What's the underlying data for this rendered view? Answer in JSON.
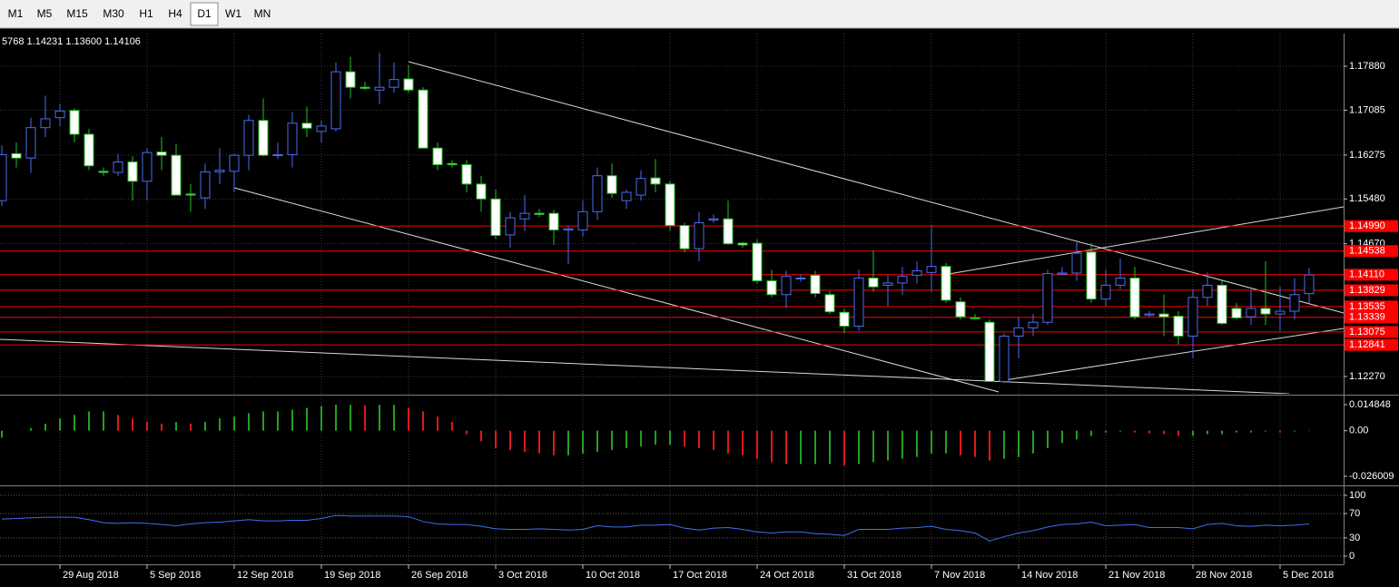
{
  "toolbar": {
    "buttons": [
      "M1",
      "M5",
      "M15",
      "M30",
      "H1",
      "H4",
      "D1",
      "W1",
      "MN"
    ],
    "active": 6
  },
  "chart_data": [
    {
      "type": "candlestick",
      "ohlc_label": "5768 1.14231 1.13600 1.14106",
      "categories": [
        null,
        null,
        null,
        null,
        "29 Aug 2018",
        null,
        null,
        null,
        null,
        null,
        "5 Sep 2018",
        null,
        null,
        null,
        null,
        null,
        "12 Sep 2018",
        null,
        null,
        null,
        null,
        null,
        "19 Sep 2018",
        null,
        null,
        null,
        null,
        null,
        "26 Sep 2018",
        null,
        null,
        null,
        null,
        null,
        "3 Oct 2018",
        null,
        null,
        null,
        null,
        null,
        "10 Oct 2018",
        null,
        null,
        null,
        null,
        null,
        "17 Oct 2018",
        null,
        null,
        null,
        null,
        null,
        "24 Oct 2018",
        null,
        null,
        null,
        null,
        null,
        "31 Oct 2018",
        null,
        null,
        null,
        null,
        null,
        "7 Nov 2018",
        null,
        null,
        null,
        null,
        null,
        "14 Nov 2018",
        null,
        null,
        null,
        null,
        null,
        "21 Nov 2018",
        null,
        null,
        null,
        null,
        null,
        "28 Nov 2018",
        null,
        null,
        null,
        null,
        null,
        "5 Dec 2018",
        null,
        null
      ],
      "open": [
        1.1545,
        1.163,
        1.1622,
        1.1677,
        1.1695,
        1.1708,
        1.1665,
        1.1598,
        1.1596,
        1.1615,
        1.158,
        1.1633,
        1.1627,
        1.1557,
        1.155,
        1.1597,
        1.1598,
        1.1627,
        1.169,
        1.1627,
        1.1628,
        1.1685,
        1.167,
        1.1675,
        1.1778,
        1.175,
        1.1745,
        1.175,
        1.1765,
        1.1745,
        1.164,
        1.1612,
        1.161,
        1.1575,
        1.1548,
        1.1483,
        1.1512,
        1.1522,
        1.1522,
        1.1492,
        1.1492,
        1.1525,
        1.159,
        1.1545,
        1.1555,
        1.1586,
        1.1575,
        1.15,
        1.1458,
        1.151,
        1.1512,
        1.1468,
        1.1468,
        1.14,
        1.1375,
        1.1405,
        1.141,
        1.1375,
        1.1343,
        1.1318,
        1.1405,
        1.1392,
        1.1396,
        1.141,
        1.1415,
        1.1426,
        1.1362,
        1.1333,
        1.1325,
        1.1218,
        1.13,
        1.1315,
        1.1325,
        1.1412,
        1.1414,
        1.1452,
        1.1367,
        1.1392,
        1.1405,
        1.1338,
        1.134,
        1.1336,
        1.13,
        1.137,
        1.1392,
        1.135,
        1.1335,
        1.135,
        1.134,
        1.1345,
        1.13768
      ],
      "high": [
        1.1645,
        1.165,
        1.1695,
        1.1735,
        1.172,
        1.1712,
        1.1675,
        1.1605,
        1.163,
        1.1625,
        1.164,
        1.166,
        1.1648,
        1.1575,
        1.1612,
        1.164,
        1.163,
        1.17,
        1.173,
        1.165,
        1.1705,
        1.1715,
        1.169,
        1.1795,
        1.1805,
        1.176,
        1.1812,
        1.1795,
        1.179,
        1.175,
        1.165,
        1.1618,
        1.1618,
        1.159,
        1.1565,
        1.1525,
        1.1555,
        1.153,
        1.1528,
        1.15,
        1.1545,
        1.1605,
        1.1612,
        1.1565,
        1.16,
        1.162,
        1.158,
        1.1505,
        1.1525,
        1.152,
        1.1545,
        1.147,
        1.1475,
        1.142,
        1.1418,
        1.1412,
        1.1418,
        1.1382,
        1.135,
        1.142,
        1.1455,
        1.141,
        1.1425,
        1.1435,
        1.15,
        1.1432,
        1.137,
        1.134,
        1.133,
        1.1305,
        1.1335,
        1.134,
        1.142,
        1.1425,
        1.147,
        1.1468,
        1.142,
        1.144,
        1.1425,
        1.1345,
        1.1375,
        1.1345,
        1.1385,
        1.1415,
        1.14,
        1.136,
        1.1385,
        1.1435,
        1.139,
        1.1405,
        1.14231
      ],
      "low": [
        1.1535,
        1.1605,
        1.1595,
        1.166,
        1.168,
        1.165,
        1.16,
        1.159,
        1.159,
        1.1545,
        1.1545,
        1.16,
        1.1555,
        1.1525,
        1.153,
        1.1575,
        1.156,
        1.16,
        1.1625,
        1.162,
        1.1605,
        1.166,
        1.165,
        1.167,
        1.173,
        1.1745,
        1.172,
        1.174,
        1.174,
        1.164,
        1.16,
        1.1605,
        1.156,
        1.1525,
        1.1475,
        1.146,
        1.149,
        1.1515,
        1.1465,
        1.143,
        1.148,
        1.151,
        1.155,
        1.153,
        1.1545,
        1.156,
        1.149,
        1.1452,
        1.1435,
        1.1505,
        1.1465,
        1.146,
        1.1395,
        1.137,
        1.135,
        1.1398,
        1.137,
        1.134,
        1.1305,
        1.131,
        1.138,
        1.1355,
        1.1375,
        1.1395,
        1.138,
        1.136,
        1.133,
        1.133,
        1.1218,
        1.1215,
        1.126,
        1.13,
        1.132,
        1.141,
        1.14,
        1.136,
        1.1355,
        1.1385,
        1.133,
        1.1335,
        1.13,
        1.1285,
        1.126,
        1.1355,
        1.132,
        1.133,
        1.132,
        1.132,
        1.131,
        1.133,
        1.136
      ],
      "close": [
        1.1628,
        1.1622,
        1.1677,
        1.1693,
        1.1707,
        1.1665,
        1.1608,
        1.1596,
        1.1615,
        1.158,
        1.1632,
        1.1627,
        1.1555,
        1.1555,
        1.1597,
        1.16,
        1.1627,
        1.169,
        1.1627,
        1.1628,
        1.1685,
        1.1676,
        1.168,
        1.1778,
        1.175,
        1.1748,
        1.175,
        1.1764,
        1.1745,
        1.164,
        1.161,
        1.161,
        1.1575,
        1.1548,
        1.1482,
        1.1514,
        1.1522,
        1.152,
        1.1492,
        1.1494,
        1.1525,
        1.159,
        1.1558,
        1.156,
        1.1585,
        1.1575,
        1.15,
        1.1458,
        1.1505,
        1.1512,
        1.1467,
        1.1465,
        1.14,
        1.1375,
        1.1408,
        1.1405,
        1.1377,
        1.1344,
        1.1318,
        1.1405,
        1.1389,
        1.1396,
        1.1408,
        1.1418,
        1.1426,
        1.1365,
        1.1335,
        1.1332,
        1.1218,
        1.13,
        1.1315,
        1.1325,
        1.1413,
        1.1414,
        1.145,
        1.1367,
        1.1392,
        1.1405,
        1.1335,
        1.134,
        1.1335,
        1.13,
        1.137,
        1.1392,
        1.1323,
        1.1333,
        1.135,
        1.134,
        1.1345,
        1.1375,
        1.14106
      ],
      "up_color": "#4a6cf0",
      "down_color": "#ffffff",
      "down_wick_color": "#22c022",
      "ylim": [
        1.11974,
        1.18471
      ],
      "yticks": [
        {
          "value": 1.1788,
          "label": "1.17880"
        },
        {
          "value": 1.17085,
          "label": "1.17085"
        },
        {
          "value": 1.16275,
          "label": "1.16275"
        },
        {
          "value": 1.1548,
          "label": "1.15480"
        },
        {
          "value": 1.1467,
          "label": "1.14670"
        },
        {
          "value": 1.1227,
          "label": "1.12270"
        }
      ],
      "levels": [
        {
          "value": 1.1499,
          "label": "1.14990"
        },
        {
          "value": 1.14538,
          "label": "1.14538"
        },
        {
          "value": 1.1411,
          "label": "1.14110"
        },
        {
          "value": 1.13829,
          "label": "1.13829"
        },
        {
          "value": 1.13535,
          "label": "1.13535"
        },
        {
          "value": 1.13339,
          "label": "1.13339"
        },
        {
          "value": 1.13075,
          "label": "1.13075"
        },
        {
          "value": 1.12841,
          "label": "1.12841"
        }
      ],
      "level_color": "#ff0000",
      "grid": true
    },
    {
      "type": "histogram",
      "values": [
        -0.004,
        0,
        0.0015,
        0.004,
        0.007,
        0.009,
        0.011,
        0.011,
        0.009,
        0.007,
        0.005,
        0.004,
        0.005,
        0.004,
        0.005,
        0.007,
        0.008,
        0.01,
        0.011,
        0.011,
        0.012,
        0.013,
        0.014,
        0.0148,
        0.0148,
        0.0145,
        0.0148,
        0.0148,
        0.013,
        0.011,
        0.008,
        0.005,
        -0.002,
        -0.006,
        -0.01,
        -0.011,
        -0.012,
        -0.013,
        -0.014,
        -0.014,
        -0.013,
        -0.012,
        -0.011,
        -0.01,
        -0.009,
        -0.008,
        -0.008,
        -0.009,
        -0.01,
        -0.011,
        -0.013,
        -0.014,
        -0.016,
        -0.018,
        -0.019,
        -0.019,
        -0.019,
        -0.019,
        -0.02,
        -0.019,
        -0.018,
        -0.017,
        -0.016,
        -0.015,
        -0.013,
        -0.013,
        -0.014,
        -0.015,
        -0.017,
        -0.016,
        -0.015,
        -0.013,
        -0.01,
        -0.007,
        -0.005,
        -0.003,
        -0.001,
        -0.0005,
        -0.001,
        -0.0015,
        -0.002,
        -0.003,
        -0.003,
        -0.002,
        -0.002,
        -0.001,
        -0.001,
        -0.0005,
        -0.001,
        -0.0005,
        -0.0002
      ],
      "up_color": "#22a022",
      "down_color": "#e01818",
      "ylim": [
        -0.026009,
        0.014848
      ],
      "yticks": [
        0.014848,
        {
          "value": 0,
          "label": "0.00"
        },
        -0.026009
      ]
    },
    {
      "type": "line",
      "values": [
        61,
        62,
        63,
        64,
        64,
        64,
        60,
        55,
        54,
        55,
        54,
        52,
        50,
        53,
        55,
        56,
        58,
        60,
        58,
        58,
        59,
        59,
        62,
        67,
        66,
        66,
        66,
        66,
        65,
        57,
        53,
        52,
        52,
        49,
        45,
        44,
        44,
        45,
        44,
        43,
        44,
        50,
        48,
        48,
        51,
        51,
        52,
        46,
        43,
        46,
        47,
        44,
        40,
        38,
        40,
        40,
        37,
        36,
        34,
        44,
        44,
        44,
        46,
        47,
        49,
        44,
        42,
        38,
        25,
        32,
        38,
        42,
        48,
        52,
        53,
        56,
        50,
        51,
        52,
        47,
        47,
        47,
        45,
        52,
        54,
        50,
        49,
        51,
        50,
        51,
        53
      ],
      "color": "#3f6ef0",
      "ylim": [
        0,
        100
      ],
      "yticks": [
        100,
        70,
        30,
        0
      ]
    }
  ]
}
